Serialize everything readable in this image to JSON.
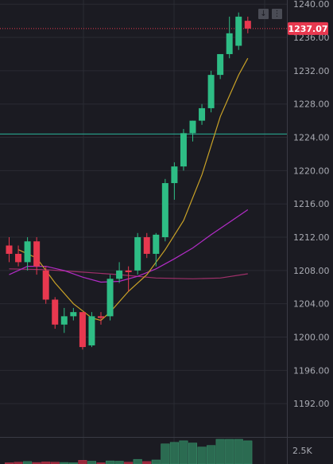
{
  "colors": {
    "background": "#1b1b22",
    "grid": "#2a2b33",
    "up": "#2ebd85",
    "down": "#e8384f",
    "ma_fast": "#c9a227",
    "ma_slow": "#b32cc7",
    "ma_long": "#a0306a",
    "hline": "#2ab59a",
    "last_price_line": "#e8384f",
    "volume_up": "#2e7a5a",
    "volume_down": "#b0283e"
  },
  "toolbar": {
    "down_icon": "arrow-down-icon",
    "more_icon": "more-vertical-icon",
    "down_glyph": "↓",
    "more_glyph": "⋮"
  },
  "price_axis": {
    "labels": [
      "1240.00",
      "1236.00",
      "1232.00",
      "1228.00",
      "1224.00",
      "1220.00",
      "1216.00",
      "1212.00",
      "1208.00",
      "1204.00",
      "1200.00",
      "1196.00",
      "1192.00"
    ],
    "last_price": "1237.07"
  },
  "volume_axis": {
    "label": "2.5K"
  },
  "chart_data": {
    "type": "candlestick",
    "ylim": [
      1188,
      1240.5
    ],
    "grid": true,
    "horizontal_line": 1224.4,
    "last_price": 1237.07,
    "candles": [
      {
        "o": 1211,
        "h": 1212,
        "l": 1209,
        "c": 1210
      },
      {
        "o": 1210,
        "h": 1211,
        "l": 1208.5,
        "c": 1209
      },
      {
        "o": 1209,
        "h": 1212,
        "l": 1208,
        "c": 1211.5
      },
      {
        "o": 1211.5,
        "h": 1212,
        "l": 1207.5,
        "c": 1208.5
      },
      {
        "o": 1208,
        "h": 1208.5,
        "l": 1204,
        "c": 1204.5
      },
      {
        "o": 1204.5,
        "h": 1204.8,
        "l": 1201,
        "c": 1201.5
      },
      {
        "o": 1201.5,
        "h": 1203.5,
        "l": 1200.5,
        "c": 1202.5
      },
      {
        "o": 1202.5,
        "h": 1203.5,
        "l": 1202,
        "c": 1203
      },
      {
        "o": 1203,
        "h": 1203,
        "l": 1198.5,
        "c": 1198.8
      },
      {
        "o": 1199,
        "h": 1203,
        "l": 1198.8,
        "c": 1202.5
      },
      {
        "o": 1202.5,
        "h": 1203,
        "l": 1201.5,
        "c": 1202.3
      },
      {
        "o": 1202.5,
        "h": 1207.5,
        "l": 1202,
        "c": 1207
      },
      {
        "o": 1207,
        "h": 1209,
        "l": 1206.5,
        "c": 1208
      },
      {
        "o": 1208,
        "h": 1208.5,
        "l": 1205.5,
        "c": 1207.8
      },
      {
        "o": 1208,
        "h": 1212.5,
        "l": 1207.5,
        "c": 1212
      },
      {
        "o": 1212,
        "h": 1212.5,
        "l": 1209.5,
        "c": 1210
      },
      {
        "o": 1210,
        "h": 1212.5,
        "l": 1208.5,
        "c": 1212.3
      },
      {
        "o": 1212,
        "h": 1219,
        "l": 1211.5,
        "c": 1218.5
      },
      {
        "o": 1218.5,
        "h": 1221,
        "l": 1216.5,
        "c": 1220.5
      },
      {
        "o": 1220.5,
        "h": 1225,
        "l": 1220,
        "c": 1224.5
      },
      {
        "o": 1224.5,
        "h": 1226,
        "l": 1223.5,
        "c": 1226
      },
      {
        "o": 1226,
        "h": 1228,
        "l": 1225.5,
        "c": 1227.5
      },
      {
        "o": 1227.5,
        "h": 1232,
        "l": 1227,
        "c": 1231.5
      },
      {
        "o": 1231.5,
        "h": 1234,
        "l": 1231,
        "c": 1234
      },
      {
        "o": 1234,
        "h": 1238.5,
        "l": 1233.5,
        "c": 1236.5
      },
      {
        "o": 1235,
        "h": 1239,
        "l": 1234.5,
        "c": 1238.5
      },
      {
        "o": 1238,
        "h": 1238.5,
        "l": 1236.5,
        "c": 1237.07
      }
    ],
    "ma_fast": [
      [
        1,
        1210.5
      ],
      [
        3,
        1209.5
      ],
      [
        5,
        1206.5
      ],
      [
        7,
        1204
      ],
      [
        9,
        1202.3
      ],
      [
        10,
        1202
      ],
      [
        11,
        1203
      ],
      [
        13,
        1205.5
      ],
      [
        15,
        1207.5
      ],
      [
        17,
        1210.5
      ],
      [
        19,
        1214
      ],
      [
        21,
        1219.5
      ],
      [
        23,
        1226.5
      ],
      [
        24,
        1229
      ],
      [
        25,
        1231.5
      ],
      [
        26,
        1233.5
      ]
    ],
    "ma_slow": [
      [
        0,
        1207.5
      ],
      [
        2,
        1208.5
      ],
      [
        4,
        1208.5
      ],
      [
        6,
        1208
      ],
      [
        8,
        1207.2
      ],
      [
        10,
        1206.6
      ],
      [
        12,
        1206.7
      ],
      [
        14,
        1207.3
      ],
      [
        16,
        1208.2
      ],
      [
        18,
        1209.4
      ],
      [
        20,
        1210.7
      ],
      [
        22,
        1212.3
      ],
      [
        24,
        1213.8
      ],
      [
        26,
        1215.3
      ]
    ],
    "ma_long": [
      [
        0,
        1208.2
      ],
      [
        4,
        1208.1
      ],
      [
        8,
        1207.8
      ],
      [
        12,
        1207.5
      ],
      [
        16,
        1207.1
      ],
      [
        20,
        1207
      ],
      [
        23,
        1207.1
      ],
      [
        26,
        1207.6
      ]
    ],
    "volume": [
      {
        "v": 0.4,
        "dir": "down"
      },
      {
        "v": 0.6,
        "dir": "down"
      },
      {
        "v": 0.8,
        "dir": "up"
      },
      {
        "v": 0.5,
        "dir": "down"
      },
      {
        "v": 0.7,
        "dir": "down"
      },
      {
        "v": 0.6,
        "dir": "down"
      },
      {
        "v": 0.5,
        "dir": "up"
      },
      {
        "v": 0.4,
        "dir": "up"
      },
      {
        "v": 1.2,
        "dir": "down"
      },
      {
        "v": 0.9,
        "dir": "up"
      },
      {
        "v": 0.4,
        "dir": "down"
      },
      {
        "v": 1.0,
        "dir": "up"
      },
      {
        "v": 0.9,
        "dir": "up"
      },
      {
        "v": 0.6,
        "dir": "down"
      },
      {
        "v": 1.5,
        "dir": "up"
      },
      {
        "v": 0.8,
        "dir": "down"
      },
      {
        "v": 1.3,
        "dir": "up"
      },
      {
        "v": 6.5,
        "dir": "up"
      },
      {
        "v": 7.0,
        "dir": "up"
      },
      {
        "v": 7.5,
        "dir": "up"
      },
      {
        "v": 6.8,
        "dir": "up"
      },
      {
        "v": 5.5,
        "dir": "up"
      },
      {
        "v": 6.0,
        "dir": "up"
      },
      {
        "v": 8.0,
        "dir": "up"
      },
      {
        "v": 8.0,
        "dir": "up"
      },
      {
        "v": 8.0,
        "dir": "up"
      },
      {
        "v": 7.5,
        "dir": "up"
      }
    ]
  }
}
